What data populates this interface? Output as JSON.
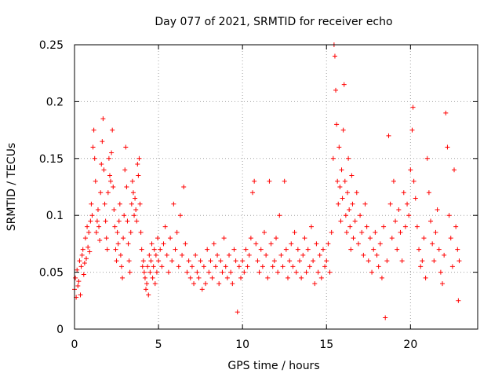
{
  "chart_data": {
    "type": "scatter",
    "title": "Day 077 of 2021, SRMTID for receiver echo",
    "xlabel": "GPS time / hours",
    "ylabel": "SRMTID / TECUs",
    "xlim": [
      0,
      24
    ],
    "ylim": [
      0,
      0.25
    ],
    "x_ticks": [
      0,
      5,
      10,
      15,
      20
    ],
    "x_tick_labels": [
      "0",
      "5",
      "10",
      "15",
      "20"
    ],
    "y_ticks": [
      0,
      0.05,
      0.1,
      0.15,
      0.2,
      0.25
    ],
    "y_tick_labels": [
      "0",
      "0.05",
      "0.1",
      "0.15",
      "0.2",
      "0.25"
    ],
    "grid": true,
    "marker": "+",
    "color": "#ff0000",
    "x_range_data": [
      0,
      22.9
    ],
    "series": [
      {
        "name": "echo",
        "points": [
          [
            0.0,
            0.035
          ],
          [
            0.05,
            0.045
          ],
          [
            0.1,
            0.028
          ],
          [
            0.15,
            0.052
          ],
          [
            0.2,
            0.038
          ],
          [
            0.25,
            0.042
          ],
          [
            0.3,
            0.06
          ],
          [
            0.35,
            0.03
          ],
          [
            0.4,
            0.055
          ],
          [
            0.45,
            0.065
          ],
          [
            0.5,
            0.07
          ],
          [
            0.55,
            0.048
          ],
          [
            0.6,
            0.058
          ],
          [
            0.65,
            0.08
          ],
          [
            0.7,
            0.062
          ],
          [
            0.75,
            0.09
          ],
          [
            0.8,
            0.072
          ],
          [
            0.85,
            0.085
          ],
          [
            0.9,
            0.068
          ],
          [
            0.95,
            0.095
          ],
          [
            1.0,
            0.11
          ],
          [
            1.05,
            0.1
          ],
          [
            1.1,
            0.16
          ],
          [
            1.15,
            0.175
          ],
          [
            1.2,
            0.15
          ],
          [
            1.25,
            0.13
          ],
          [
            1.3,
            0.085
          ],
          [
            1.35,
            0.095
          ],
          [
            1.4,
            0.105
          ],
          [
            1.45,
            0.09
          ],
          [
            1.5,
            0.078
          ],
          [
            1.55,
            0.12
          ],
          [
            1.6,
            0.145
          ],
          [
            1.65,
            0.165
          ],
          [
            1.7,
            0.185
          ],
          [
            1.75,
            0.14
          ],
          [
            1.8,
            0.11
          ],
          [
            1.85,
            0.095
          ],
          [
            1.9,
            0.08
          ],
          [
            1.95,
            0.07
          ],
          [
            2.0,
            0.12
          ],
          [
            2.05,
            0.15
          ],
          [
            2.1,
            0.135
          ],
          [
            2.15,
            0.13
          ],
          [
            2.2,
            0.155
          ],
          [
            2.25,
            0.175
          ],
          [
            2.3,
            0.125
          ],
          [
            2.35,
            0.105
          ],
          [
            2.4,
            0.09
          ],
          [
            2.45,
            0.07
          ],
          [
            2.5,
            0.06
          ],
          [
            2.55,
            0.085
          ],
          [
            2.6,
            0.075
          ],
          [
            2.65,
            0.095
          ],
          [
            2.7,
            0.11
          ],
          [
            2.75,
            0.065
          ],
          [
            2.8,
            0.055
          ],
          [
            2.85,
            0.045
          ],
          [
            2.9,
            0.08
          ],
          [
            2.95,
            0.1
          ],
          [
            3.0,
            0.14
          ],
          [
            3.05,
            0.16
          ],
          [
            3.1,
            0.125
          ],
          [
            3.15,
            0.095
          ],
          [
            3.2,
            0.075
          ],
          [
            3.25,
            0.06
          ],
          [
            3.3,
            0.05
          ],
          [
            3.35,
            0.085
          ],
          [
            3.4,
            0.11
          ],
          [
            3.45,
            0.13
          ],
          [
            3.5,
            0.12
          ],
          [
            3.55,
            0.1
          ],
          [
            3.6,
            0.115
          ],
          [
            3.65,
            0.105
          ],
          [
            3.7,
            0.095
          ],
          [
            3.75,
            0.145
          ],
          [
            3.8,
            0.135
          ],
          [
            3.85,
            0.15
          ],
          [
            3.9,
            0.11
          ],
          [
            3.95,
            0.085
          ],
          [
            4.0,
            0.07
          ],
          [
            4.05,
            0.055
          ],
          [
            4.1,
            0.06
          ],
          [
            4.15,
            0.05
          ],
          [
            4.2,
            0.045
          ],
          [
            4.25,
            0.035
          ],
          [
            4.3,
            0.04
          ],
          [
            4.35,
            0.055
          ],
          [
            4.4,
            0.03
          ],
          [
            4.45,
            0.065
          ],
          [
            4.5,
            0.05
          ],
          [
            4.55,
            0.06
          ],
          [
            4.6,
            0.075
          ],
          [
            4.65,
            0.045
          ],
          [
            4.7,
            0.055
          ],
          [
            4.75,
            0.07
          ],
          [
            4.8,
            0.04
          ],
          [
            4.85,
            0.065
          ],
          [
            4.9,
            0.05
          ],
          [
            4.95,
            0.08
          ],
          [
            5.0,
            0.06
          ],
          [
            5.1,
            0.07
          ],
          [
            5.2,
            0.055
          ],
          [
            5.3,
            0.075
          ],
          [
            5.4,
            0.09
          ],
          [
            5.5,
            0.065
          ],
          [
            5.6,
            0.05
          ],
          [
            5.7,
            0.08
          ],
          [
            5.8,
            0.06
          ],
          [
            5.9,
            0.11
          ],
          [
            6.0,
            0.07
          ],
          [
            6.1,
            0.085
          ],
          [
            6.2,
            0.055
          ],
          [
            6.3,
            0.1
          ],
          [
            6.4,
            0.065
          ],
          [
            6.5,
            0.125
          ],
          [
            6.6,
            0.075
          ],
          [
            6.7,
            0.05
          ],
          [
            6.8,
            0.06
          ],
          [
            6.9,
            0.045
          ],
          [
            7.0,
            0.055
          ],
          [
            7.1,
            0.04
          ],
          [
            7.2,
            0.065
          ],
          [
            7.3,
            0.05
          ],
          [
            7.4,
            0.045
          ],
          [
            7.5,
            0.06
          ],
          [
            7.6,
            0.035
          ],
          [
            7.7,
            0.055
          ],
          [
            7.8,
            0.04
          ],
          [
            7.9,
            0.07
          ],
          [
            8.0,
            0.05
          ],
          [
            8.1,
            0.06
          ],
          [
            8.2,
            0.045
          ],
          [
            8.3,
            0.075
          ],
          [
            8.4,
            0.055
          ],
          [
            8.5,
            0.065
          ],
          [
            8.6,
            0.04
          ],
          [
            8.7,
            0.06
          ],
          [
            8.8,
            0.05
          ],
          [
            8.9,
            0.08
          ],
          [
            9.0,
            0.055
          ],
          [
            9.1,
            0.045
          ],
          [
            9.2,
            0.065
          ],
          [
            9.3,
            0.05
          ],
          [
            9.4,
            0.04
          ],
          [
            9.5,
            0.07
          ],
          [
            9.6,
            0.06
          ],
          [
            9.7,
            0.015
          ],
          [
            9.8,
            0.055
          ],
          [
            9.9,
            0.045
          ],
          [
            10.0,
            0.06
          ],
          [
            10.1,
            0.05
          ],
          [
            10.2,
            0.07
          ],
          [
            10.3,
            0.055
          ],
          [
            10.4,
            0.065
          ],
          [
            10.5,
            0.08
          ],
          [
            10.6,
            0.12
          ],
          [
            10.7,
            0.13
          ],
          [
            10.8,
            0.075
          ],
          [
            10.9,
            0.06
          ],
          [
            11.0,
            0.05
          ],
          [
            11.1,
            0.07
          ],
          [
            11.2,
            0.055
          ],
          [
            11.3,
            0.085
          ],
          [
            11.4,
            0.065
          ],
          [
            11.5,
            0.045
          ],
          [
            11.6,
            0.13
          ],
          [
            11.7,
            0.075
          ],
          [
            11.8,
            0.055
          ],
          [
            11.9,
            0.06
          ],
          [
            12.0,
            0.08
          ],
          [
            12.1,
            0.05
          ],
          [
            12.2,
            0.1
          ],
          [
            12.3,
            0.065
          ],
          [
            12.4,
            0.055
          ],
          [
            12.5,
            0.13
          ],
          [
            12.6,
            0.07
          ],
          [
            12.7,
            0.045
          ],
          [
            12.8,
            0.06
          ],
          [
            12.9,
            0.075
          ],
          [
            13.0,
            0.055
          ],
          [
            13.1,
            0.085
          ],
          [
            13.2,
            0.05
          ],
          [
            13.3,
            0.07
          ],
          [
            13.4,
            0.06
          ],
          [
            13.5,
            0.045
          ],
          [
            13.6,
            0.065
          ],
          [
            13.7,
            0.08
          ],
          [
            13.8,
            0.05
          ],
          [
            13.9,
            0.07
          ],
          [
            14.0,
            0.055
          ],
          [
            14.1,
            0.09
          ],
          [
            14.2,
            0.06
          ],
          [
            14.3,
            0.04
          ],
          [
            14.4,
            0.075
          ],
          [
            14.5,
            0.05
          ],
          [
            14.6,
            0.065
          ],
          [
            14.7,
            0.045
          ],
          [
            14.8,
            0.07
          ],
          [
            14.9,
            0.055
          ],
          [
            15.0,
            0.06
          ],
          [
            15.1,
            0.075
          ],
          [
            15.2,
            0.05
          ],
          [
            15.3,
            0.085
          ],
          [
            15.4,
            0.15
          ],
          [
            15.45,
            0.25
          ],
          [
            15.5,
            0.24
          ],
          [
            15.55,
            0.21
          ],
          [
            15.6,
            0.18
          ],
          [
            15.65,
            0.13
          ],
          [
            15.7,
            0.11
          ],
          [
            15.75,
            0.16
          ],
          [
            15.8,
            0.125
          ],
          [
            15.85,
            0.095
          ],
          [
            15.9,
            0.14
          ],
          [
            15.95,
            0.115
          ],
          [
            16.0,
            0.175
          ],
          [
            16.05,
            0.215
          ],
          [
            16.1,
            0.13
          ],
          [
            16.15,
            0.1
          ],
          [
            16.2,
            0.085
          ],
          [
            16.25,
            0.12
          ],
          [
            16.3,
            0.15
          ],
          [
            16.35,
            0.105
          ],
          [
            16.4,
            0.09
          ],
          [
            16.45,
            0.07
          ],
          [
            16.5,
            0.135
          ],
          [
            16.55,
            0.11
          ],
          [
            16.6,
            0.08
          ],
          [
            16.7,
            0.095
          ],
          [
            16.8,
            0.12
          ],
          [
            16.9,
            0.075
          ],
          [
            17.0,
            0.1
          ],
          [
            17.1,
            0.085
          ],
          [
            17.2,
            0.065
          ],
          [
            17.3,
            0.11
          ],
          [
            17.4,
            0.09
          ],
          [
            17.5,
            0.06
          ],
          [
            17.6,
            0.08
          ],
          [
            17.7,
            0.05
          ],
          [
            17.8,
            0.07
          ],
          [
            17.9,
            0.085
          ],
          [
            18.0,
            0.065
          ],
          [
            18.1,
            0.055
          ],
          [
            18.2,
            0.075
          ],
          [
            18.3,
            0.045
          ],
          [
            18.4,
            0.09
          ],
          [
            18.5,
            0.01
          ],
          [
            18.6,
            0.06
          ],
          [
            18.7,
            0.17
          ],
          [
            18.8,
            0.11
          ],
          [
            18.9,
            0.08
          ],
          [
            19.0,
            0.13
          ],
          [
            19.1,
            0.095
          ],
          [
            19.2,
            0.07
          ],
          [
            19.3,
            0.105
          ],
          [
            19.4,
            0.085
          ],
          [
            19.5,
            0.06
          ],
          [
            19.6,
            0.12
          ],
          [
            19.7,
            0.09
          ],
          [
            19.8,
            0.11
          ],
          [
            19.9,
            0.1
          ],
          [
            20.0,
            0.14
          ],
          [
            20.1,
            0.175
          ],
          [
            20.15,
            0.195
          ],
          [
            20.2,
            0.13
          ],
          [
            20.3,
            0.115
          ],
          [
            20.4,
            0.09
          ],
          [
            20.5,
            0.07
          ],
          [
            20.6,
            0.055
          ],
          [
            20.7,
            0.06
          ],
          [
            20.8,
            0.08
          ],
          [
            20.9,
            0.045
          ],
          [
            21.0,
            0.15
          ],
          [
            21.1,
            0.12
          ],
          [
            21.2,
            0.095
          ],
          [
            21.3,
            0.075
          ],
          [
            21.4,
            0.06
          ],
          [
            21.5,
            0.085
          ],
          [
            21.6,
            0.105
          ],
          [
            21.7,
            0.07
          ],
          [
            21.8,
            0.05
          ],
          [
            21.9,
            0.04
          ],
          [
            22.0,
            0.065
          ],
          [
            22.1,
            0.19
          ],
          [
            22.2,
            0.16
          ],
          [
            22.3,
            0.1
          ],
          [
            22.4,
            0.08
          ],
          [
            22.5,
            0.055
          ],
          [
            22.6,
            0.14
          ],
          [
            22.7,
            0.09
          ],
          [
            22.8,
            0.07
          ],
          [
            22.85,
            0.025
          ],
          [
            22.9,
            0.06
          ]
        ]
      }
    ]
  }
}
